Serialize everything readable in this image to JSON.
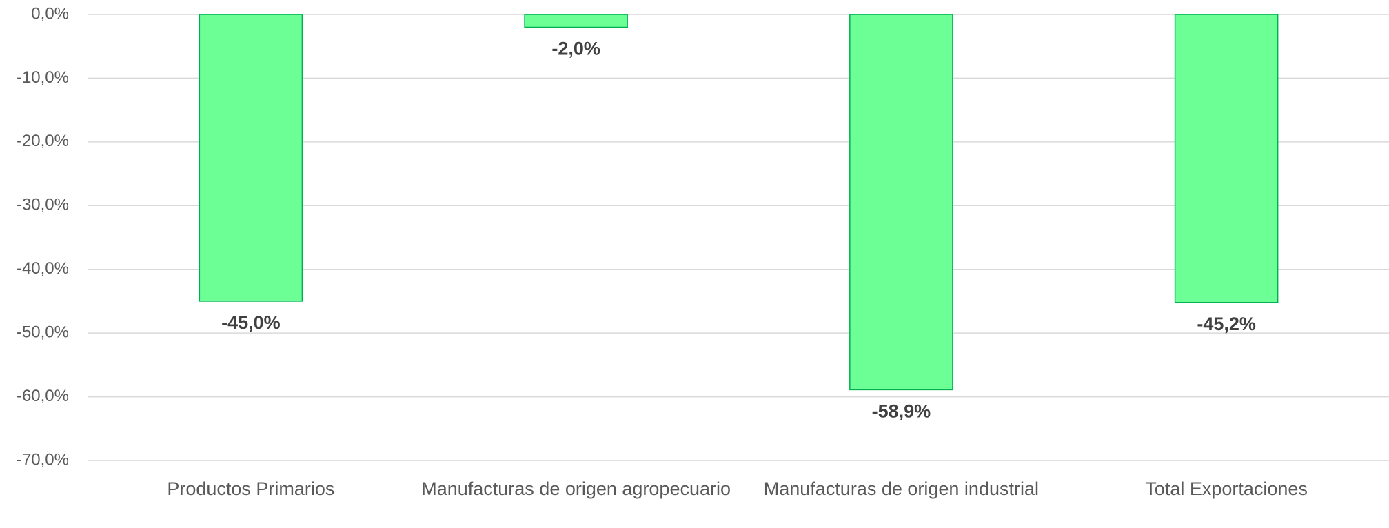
{
  "chart_data": {
    "type": "bar",
    "categories": [
      "Productos Primarios",
      "Manufacturas de origen agropecuario",
      "Manufacturas de origen industrial",
      "Total Exportaciones"
    ],
    "values": [
      -45.0,
      -2.0,
      -58.9,
      -45.2
    ],
    "value_labels": [
      "-45,0%",
      "-2,0%",
      "-58,9%",
      "-45,2%"
    ],
    "color": "#6bff96",
    "ylim": [
      -70,
      0
    ],
    "yticks": [
      {
        "value": 0,
        "label": "0,0%"
      },
      {
        "value": -10,
        "label": "-10,0%"
      },
      {
        "value": -20,
        "label": "-20,0%"
      },
      {
        "value": -30,
        "label": "-30,0%"
      },
      {
        "value": -40,
        "label": "-40,0%"
      },
      {
        "value": -50,
        "label": "-50,0%"
      },
      {
        "value": -60,
        "label": "-60,0%"
      },
      {
        "value": -70,
        "label": "-70,0%"
      }
    ],
    "grid": true
  }
}
